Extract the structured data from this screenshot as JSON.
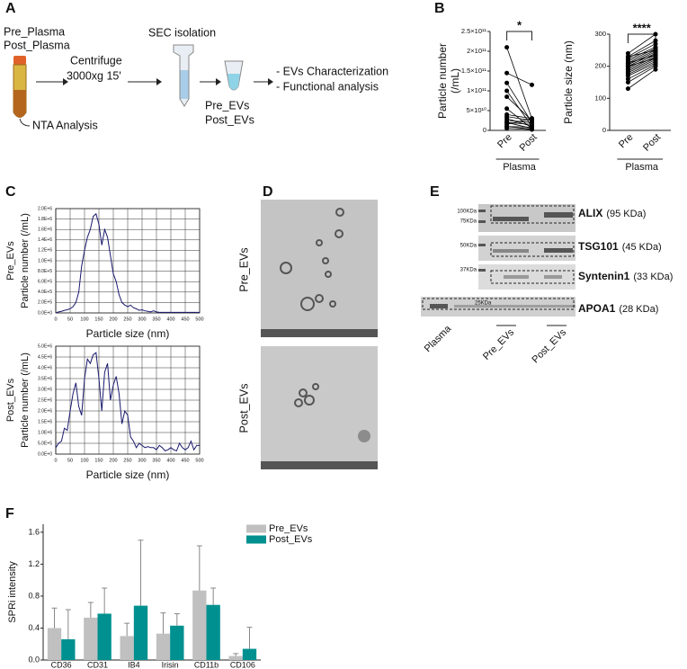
{
  "panel_labels": [
    "A",
    "B",
    "C",
    "D",
    "E",
    "F"
  ],
  "workflow": {
    "samples": [
      "Pre_Plasma",
      "Post_Plasma"
    ],
    "centrifuge": [
      "Centrifuge",
      "3000xg 15'"
    ],
    "nta": "NTA Analysis",
    "sec": "SEC isolation",
    "evs": [
      "Pre_EVs",
      "Post_EVs"
    ],
    "outputs": [
      "- EVs Characterization",
      "- Functional analysis"
    ]
  },
  "tem": {
    "labels": [
      "Pre_EVs",
      "Post_EVs"
    ]
  },
  "blot": {
    "markers": [
      "100KDa",
      "75KDa",
      "50KDa",
      "37KDa",
      "25KDa"
    ],
    "proteins": [
      {
        "name": "ALIX",
        "size": "(95 KDa)"
      },
      {
        "name": "TSG101",
        "size": "(45 KDa)"
      },
      {
        "name": "Syntenin1",
        "size": "(33 KDa)"
      },
      {
        "name": "APOA1",
        "size": "(28 KDa)"
      }
    ],
    "lanes": [
      "Plasma",
      "Pre_EVs",
      "Post_EVs"
    ]
  },
  "chart_data": [
    {
      "type": "paired",
      "ylabel": [
        "Particle number",
        "(/mL)"
      ],
      "categories": [
        "Pre",
        "Post"
      ],
      "group_label": "Plasma",
      "significance": "*",
      "color": "#000000",
      "ylim": [
        0,
        250000000000.0
      ],
      "yticks": [
        0,
        {
          "value": 50000000000.0,
          "label": "5×10¹⁰"
        },
        {
          "value": 100000000000.0,
          "label": "1×10¹¹"
        },
        {
          "value": 150000000000.0,
          "label": "1.5×10¹¹"
        },
        {
          "value": 200000000000.0,
          "label": "2×10¹¹"
        },
        {
          "value": 250000000000.0,
          "label": "2.5×10¹¹"
        }
      ],
      "points": [
        [
          210000000000.0,
          30000000000.0
        ],
        [
          145000000000.0,
          115000000000.0
        ],
        [
          120000000000.0,
          20000000000.0
        ],
        [
          100000000000.0,
          10000000000.0
        ],
        [
          85000000000.0,
          25000000000.0
        ],
        [
          55000000000.0,
          5000000000.0
        ],
        [
          40000000000.0,
          30000000000.0
        ],
        [
          35000000000.0,
          25000000000.0
        ],
        [
          30000000000.0,
          10000000000.0
        ],
        [
          25000000000.0,
          20000000000.0
        ],
        [
          20000000000.0,
          15000000000.0
        ],
        [
          20000000000.0,
          5000000000.0
        ],
        [
          15000000000.0,
          30000000000.0
        ],
        [
          10000000000.0,
          8000000000.0
        ],
        [
          10000000000.0,
          3000000000.0
        ],
        [
          5000000000.0,
          2000000000.0
        ]
      ]
    },
    {
      "type": "paired",
      "ylabel": [
        "Particle size (nm)"
      ],
      "categories": [
        "Pre",
        "Post"
      ],
      "group_label": "Plasma",
      "significance": "****",
      "color": "#000000",
      "ylim": [
        0,
        300
      ],
      "yticks": [
        0,
        100,
        200,
        300
      ],
      "points": [
        [
          240,
          300
        ],
        [
          230,
          280
        ],
        [
          225,
          270
        ],
        [
          220,
          260
        ],
        [
          215,
          255
        ],
        [
          210,
          250
        ],
        [
          205,
          245
        ],
        [
          200,
          240
        ],
        [
          195,
          235
        ],
        [
          190,
          230
        ],
        [
          185,
          225
        ],
        [
          180,
          220
        ],
        [
          175,
          215
        ],
        [
          170,
          210
        ],
        [
          160,
          205
        ],
        [
          150,
          200
        ],
        [
          130,
          190
        ],
        [
          230,
          250
        ],
        [
          210,
          235
        ],
        [
          200,
          225
        ]
      ]
    },
    {
      "type": "line",
      "sample": "Pre_EVs",
      "ylabel": "Particle number (/mL)",
      "xlabel": "Particle size (nm)",
      "color": "#1a1a6e",
      "grid": true,
      "xlim": [
        0,
        500
      ],
      "xticks": [
        0,
        50,
        100,
        150,
        200,
        250,
        300,
        350,
        400,
        450,
        500
      ],
      "ylim": [
        0,
        2000000
      ],
      "yticks": [
        {
          "value": 0,
          "label": "0.0E+0"
        },
        {
          "value": 200000,
          "label": "2.0E+5"
        },
        {
          "value": 400000,
          "label": "4.0E+5"
        },
        {
          "value": 600000,
          "label": "6.0E+5"
        },
        {
          "value": 800000,
          "label": "8.0E+5"
        },
        {
          "value": 1000000,
          "label": "1.0E+6"
        },
        {
          "value": 1200000,
          "label": "1.2E+6"
        },
        {
          "value": 1400000,
          "label": "1.4E+6"
        },
        {
          "value": 1600000,
          "label": "1.6E+6"
        },
        {
          "value": 1800000,
          "label": "1.8E+6"
        },
        {
          "value": 2000000,
          "label": "2.0E+6"
        }
      ],
      "x": [
        0,
        10,
        20,
        30,
        40,
        50,
        60,
        70,
        80,
        90,
        100,
        110,
        120,
        130,
        140,
        150,
        160,
        170,
        180,
        190,
        200,
        210,
        220,
        230,
        240,
        250,
        260,
        270,
        280,
        290,
        300,
        310,
        320,
        330,
        340,
        350,
        360,
        370,
        380,
        390,
        400,
        410,
        420,
        430,
        440,
        450,
        460,
        470,
        480,
        490,
        500
      ],
      "values": [
        0,
        20000,
        30000,
        50000,
        60000,
        80000,
        120000,
        200000,
        400000,
        900000,
        1200000,
        1450000,
        1600000,
        1850000,
        1900000,
        1700000,
        1300000,
        1600000,
        1450000,
        1100000,
        750000,
        600000,
        350000,
        200000,
        150000,
        120000,
        150000,
        100000,
        80000,
        50000,
        60000,
        40000,
        30000,
        20000,
        40000,
        20000,
        10000,
        10000,
        10000,
        10000,
        10000,
        10000,
        10000,
        10000,
        10000,
        10000,
        10000,
        10000,
        10000,
        10000,
        10000
      ]
    },
    {
      "type": "line",
      "sample": "Post_EVs",
      "ylabel": "Particle number (/mL)",
      "xlabel": "Particle size (nm)",
      "color": "#1a1a6e",
      "grid": true,
      "xlim": [
        0,
        500
      ],
      "xticks": [
        0,
        50,
        100,
        150,
        200,
        250,
        300,
        350,
        400,
        450,
        500
      ],
      "ylim": [
        0,
        5000000
      ],
      "yticks": [
        {
          "value": 0,
          "label": "0.0E+0"
        },
        {
          "value": 500000,
          "label": "5.0E+5"
        },
        {
          "value": 1000000,
          "label": "1.0E+6"
        },
        {
          "value": 1500000,
          "label": "1.5E+6"
        },
        {
          "value": 2000000,
          "label": "2.0E+6"
        },
        {
          "value": 2500000,
          "label": "2.5E+6"
        },
        {
          "value": 3000000,
          "label": "3.0E+6"
        },
        {
          "value": 3500000,
          "label": "3.5E+6"
        },
        {
          "value": 4000000,
          "label": "4.0E+6"
        },
        {
          "value": 4500000,
          "label": "4.5E+6"
        },
        {
          "value": 5000000,
          "label": "5.0E+6"
        }
      ],
      "x": [
        0,
        10,
        20,
        30,
        40,
        50,
        60,
        70,
        80,
        90,
        100,
        110,
        120,
        130,
        140,
        150,
        160,
        170,
        180,
        190,
        200,
        210,
        220,
        230,
        240,
        250,
        260,
        270,
        280,
        290,
        300,
        310,
        320,
        330,
        340,
        350,
        360,
        370,
        380,
        390,
        400,
        410,
        420,
        430,
        440,
        450,
        460,
        470,
        480,
        490,
        500
      ],
      "values": [
        300000,
        500000,
        600000,
        1200000,
        1100000,
        2000000,
        2800000,
        3300000,
        2200000,
        1800000,
        3500000,
        4400000,
        4200000,
        4600000,
        4700000,
        3500000,
        2000000,
        3800000,
        4200000,
        2500000,
        3200000,
        3600000,
        2800000,
        1400000,
        2000000,
        1800000,
        800000,
        600000,
        300000,
        500000,
        400000,
        300000,
        350000,
        300000,
        300000,
        200000,
        400000,
        300000,
        150000,
        200000,
        300000,
        200000,
        150000,
        500000,
        300000,
        200000,
        300000,
        600000,
        200000,
        400000,
        400000
      ]
    },
    {
      "type": "bar",
      "ylabel": "SPRi intensity",
      "categories": [
        "CD36",
        "CD31",
        "IB4",
        "Irisin",
        "CD11b",
        "CD106"
      ],
      "ylim": [
        0,
        1.7
      ],
      "yticks": [
        {
          "value": 0,
          "label": "0.0"
        },
        0.4,
        0.8,
        1.2,
        1.6
      ],
      "series": [
        {
          "name": "Pre_EVs",
          "color": "#c0c0c0",
          "values": [
            0.4,
            0.53,
            0.3,
            0.33,
            0.87,
            0.05
          ],
          "errors": [
            0.25,
            0.19,
            0.16,
            0.26,
            0.56,
            0.03
          ]
        },
        {
          "name": "Post_EVs",
          "color": "#009090",
          "values": [
            0.26,
            0.58,
            0.68,
            0.43,
            0.69,
            0.14
          ],
          "errors": [
            0.37,
            0.32,
            0.82,
            0.15,
            0.21,
            0.27
          ]
        }
      ]
    }
  ]
}
